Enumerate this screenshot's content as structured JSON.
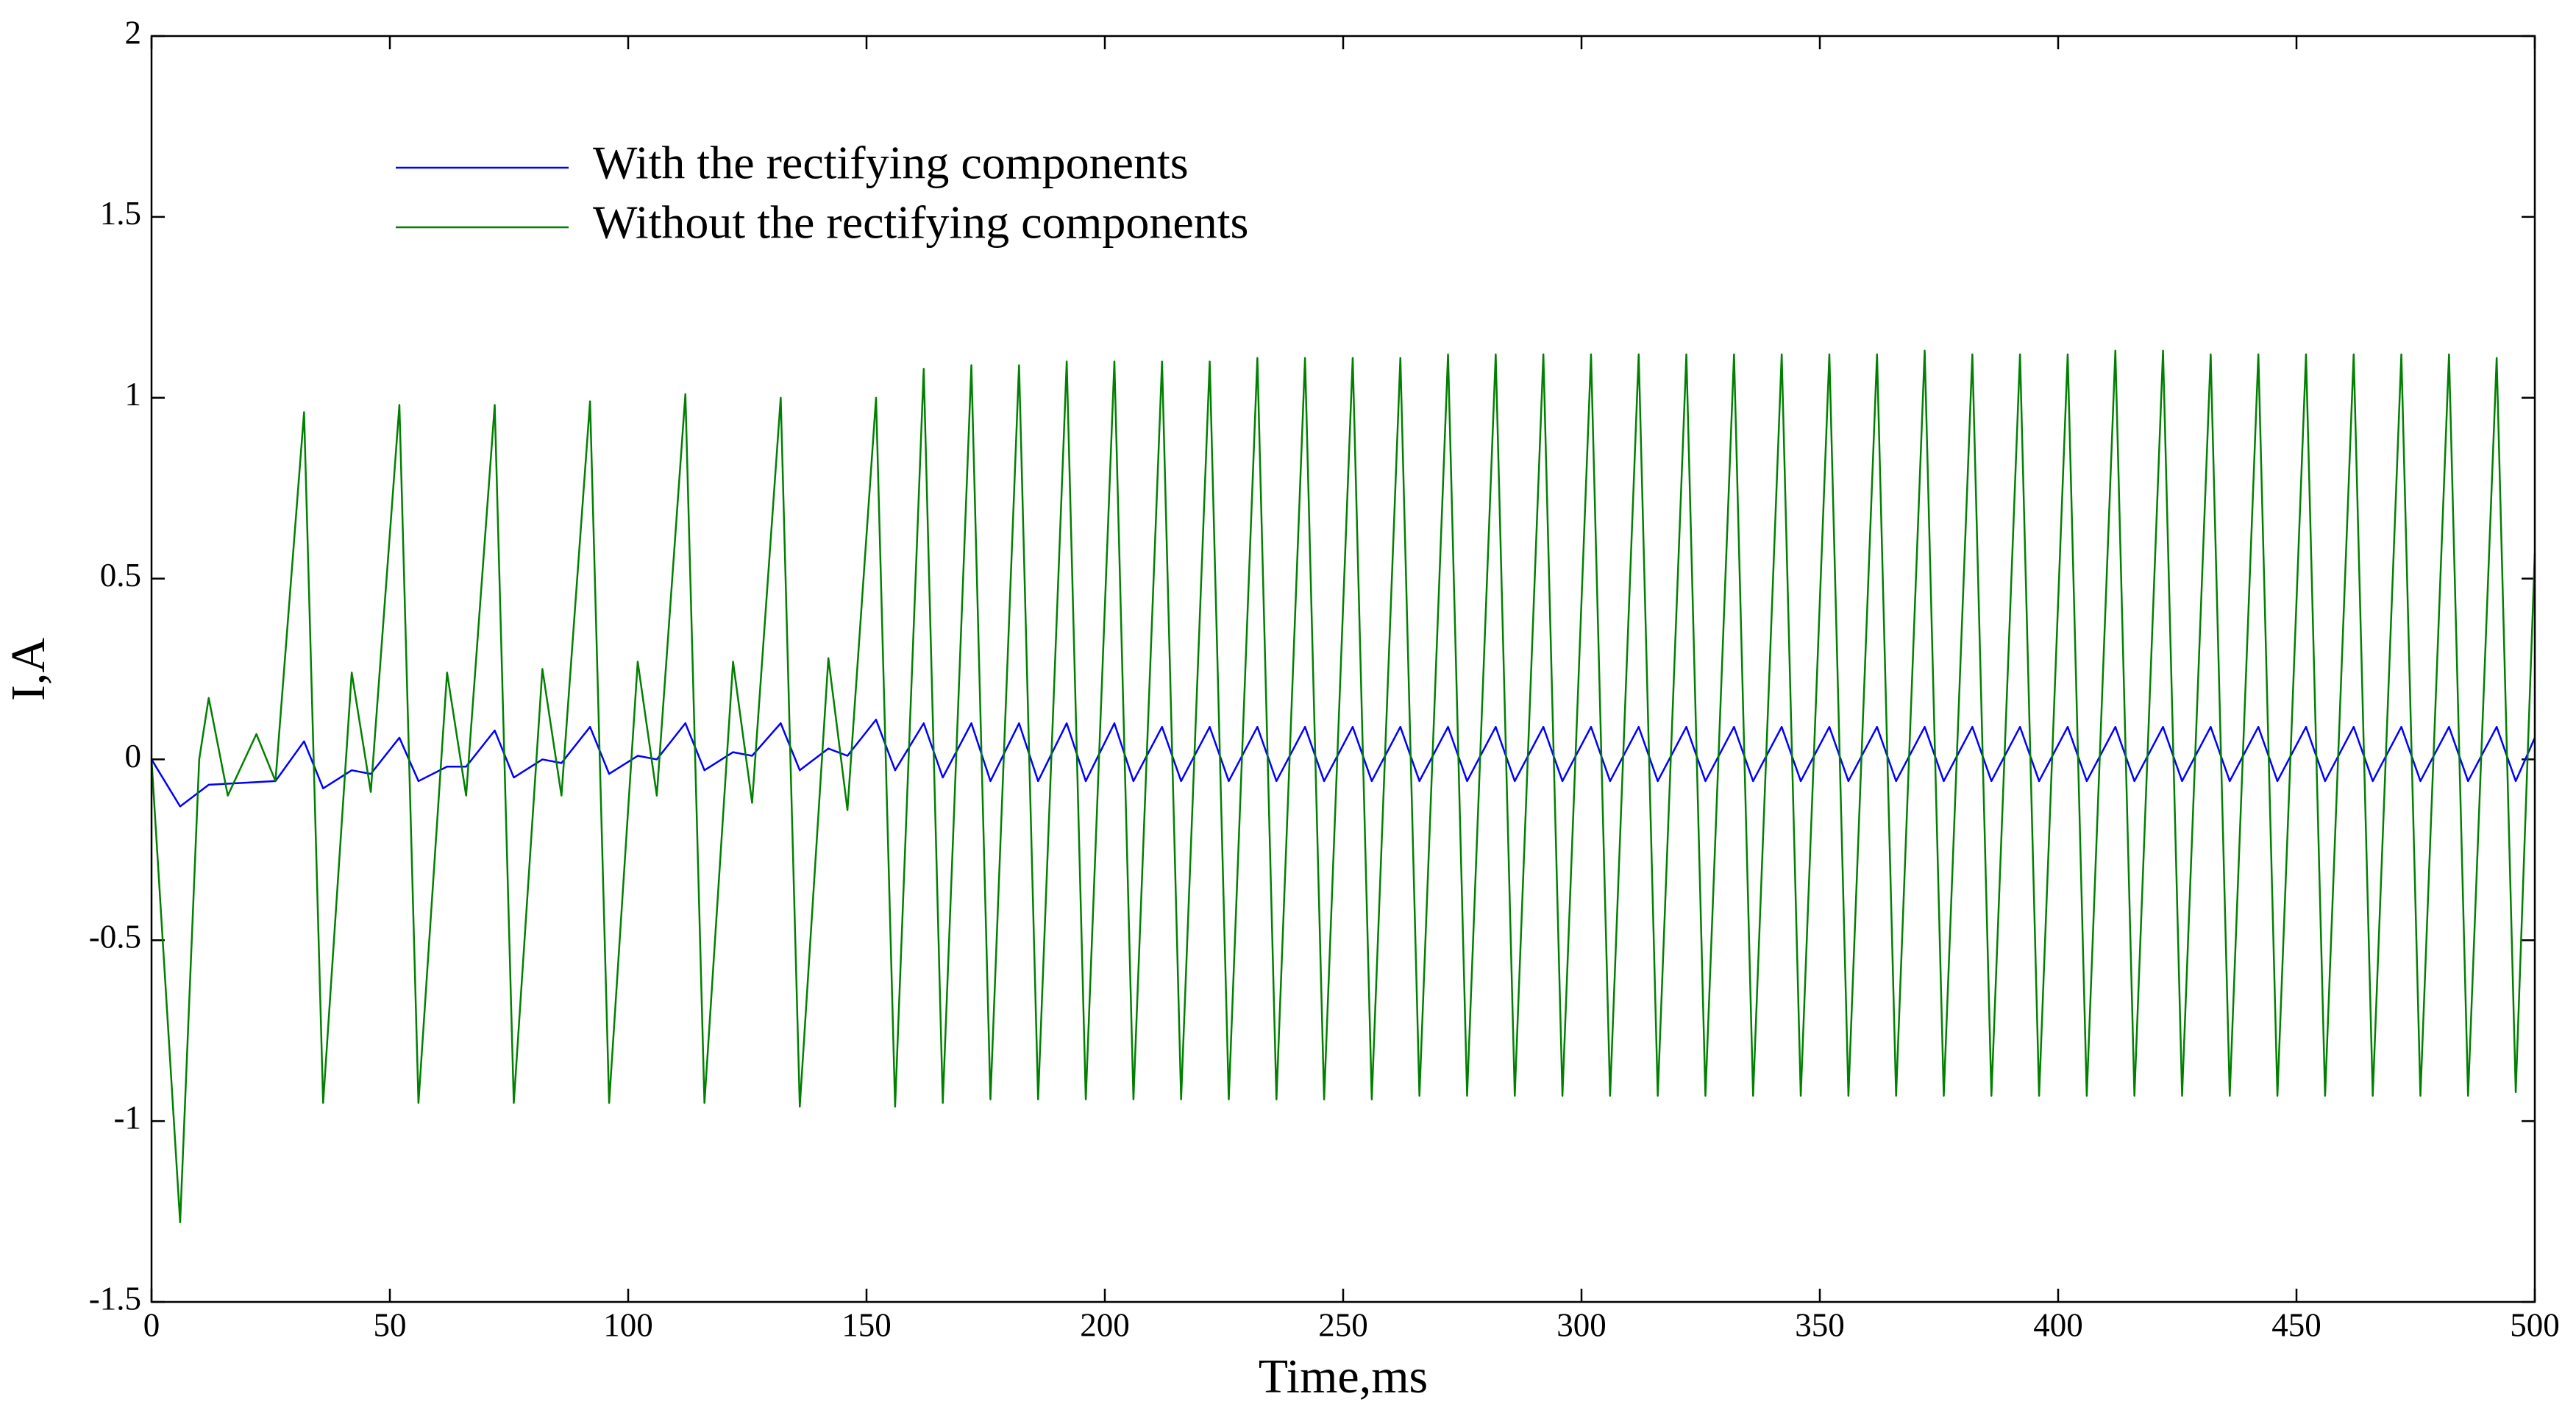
{
  "chart_data": {
    "type": "line",
    "xlabel": "Time,ms",
    "ylabel": "I,A",
    "xlim": [
      0,
      500
    ],
    "xticks": [
      0,
      50,
      100,
      150,
      200,
      250,
      300,
      350,
      400,
      450,
      500
    ],
    "ylim": [
      -1.5,
      2
    ],
    "yticks": [
      -1.5,
      -1,
      -0.5,
      0,
      0.5,
      1,
      1.5,
      2
    ],
    "grid": false,
    "legend": "upper left",
    "series": [
      {
        "name": "With the rectifying components",
        "color": "#0000ff",
        "x": [
          0,
          6,
          12,
          26,
          32,
          36,
          42,
          46,
          52,
          56,
          62,
          66,
          72,
          76,
          82,
          86,
          92,
          96,
          102,
          106,
          112,
          116,
          122,
          126,
          132,
          136,
          142,
          146,
          152,
          156,
          162,
          166,
          172,
          176,
          182,
          186,
          192,
          196,
          202,
          206,
          212,
          216,
          222,
          226,
          232,
          236,
          242,
          246,
          252,
          256,
          262,
          266,
          272,
          276,
          282,
          286,
          292,
          296,
          302,
          306,
          312,
          316,
          322,
          326,
          332,
          336,
          342,
          346,
          352,
          356,
          362,
          366,
          372,
          376,
          382,
          386,
          392,
          396,
          402,
          406,
          412,
          416,
          422,
          426,
          432,
          436,
          442,
          446,
          452,
          456,
          462,
          466,
          472,
          476,
          482,
          486,
          492,
          496,
          500
        ],
        "values": [
          0,
          -0.13,
          -0.07,
          -0.06,
          0.05,
          -0.08,
          -0.03,
          -0.04,
          0.06,
          -0.06,
          -0.02,
          -0.02,
          0.08,
          -0.05,
          0,
          -0.01,
          0.09,
          -0.04,
          0.01,
          0,
          0.1,
          -0.03,
          0.02,
          0.01,
          0.1,
          -0.03,
          0.03,
          0.01,
          0.11,
          -0.03,
          0.1,
          -0.05,
          0.1,
          -0.06,
          0.1,
          -0.06,
          0.1,
          -0.06,
          0.1,
          -0.06,
          0.09,
          -0.06,
          0.09,
          -0.06,
          0.09,
          -0.06,
          0.09,
          -0.06,
          0.09,
          -0.06,
          0.09,
          -0.06,
          0.09,
          -0.06,
          0.09,
          -0.06,
          0.09,
          -0.06,
          0.09,
          -0.06,
          0.09,
          -0.06,
          0.09,
          -0.06,
          0.09,
          -0.06,
          0.09,
          -0.06,
          0.09,
          -0.06,
          0.09,
          -0.06,
          0.09,
          -0.06,
          0.09,
          -0.06,
          0.09,
          -0.06,
          0.09,
          -0.06,
          0.09,
          -0.06,
          0.09,
          -0.06,
          0.09,
          -0.06,
          0.09,
          -0.06,
          0.09,
          -0.06,
          0.09,
          -0.06,
          0.09,
          -0.06,
          0.09,
          -0.06,
          0.09,
          -0.06,
          0.06
        ]
      },
      {
        "name": "Without the rectifying components",
        "color": "#008000",
        "x": [
          0,
          6,
          10,
          12,
          16,
          22,
          26,
          32,
          36,
          42,
          46,
          52,
          56,
          62,
          66,
          72,
          76,
          82,
          86,
          92,
          96,
          102,
          106,
          112,
          116,
          122,
          126,
          132,
          136,
          142,
          146,
          152,
          156,
          162,
          166,
          172,
          176,
          182,
          186,
          192,
          196,
          202,
          206,
          212,
          216,
          222,
          226,
          232,
          236,
          242,
          246,
          252,
          256,
          262,
          266,
          272,
          276,
          282,
          286,
          292,
          296,
          302,
          306,
          312,
          316,
          322,
          326,
          332,
          336,
          342,
          346,
          352,
          356,
          362,
          366,
          372,
          376,
          382,
          386,
          392,
          396,
          402,
          406,
          412,
          416,
          422,
          426,
          432,
          436,
          442,
          446,
          452,
          456,
          462,
          466,
          472,
          476,
          482,
          486,
          492,
          496,
          500
        ],
        "values": [
          0,
          -1.28,
          0,
          0.17,
          -0.1,
          0.07,
          -0.06,
          0.96,
          -0.95,
          0.24,
          -0.09,
          0.98,
          -0.95,
          0.24,
          -0.1,
          0.98,
          -0.95,
          0.25,
          -0.1,
          0.99,
          -0.95,
          0.27,
          -0.1,
          1.01,
          -0.95,
          0.27,
          -0.12,
          1.0,
          -0.96,
          0.28,
          -0.14,
          1.0,
          -0.96,
          1.08,
          -0.95,
          1.09,
          -0.94,
          1.09,
          -0.94,
          1.1,
          -0.94,
          1.1,
          -0.94,
          1.1,
          -0.94,
          1.1,
          -0.94,
          1.11,
          -0.94,
          1.11,
          -0.94,
          1.11,
          -0.94,
          1.11,
          -0.93,
          1.12,
          -0.93,
          1.12,
          -0.93,
          1.12,
          -0.93,
          1.12,
          -0.93,
          1.12,
          -0.93,
          1.12,
          -0.93,
          1.12,
          -0.93,
          1.12,
          -0.93,
          1.12,
          -0.93,
          1.12,
          -0.93,
          1.13,
          -0.93,
          1.12,
          -0.93,
          1.12,
          -0.93,
          1.12,
          -0.93,
          1.13,
          -0.93,
          1.13,
          -0.93,
          1.12,
          -0.93,
          1.12,
          -0.93,
          1.12,
          -0.93,
          1.12,
          -0.93,
          1.12,
          -0.93,
          1.12,
          -0.93,
          1.11,
          -0.92,
          0.57
        ]
      }
    ]
  }
}
